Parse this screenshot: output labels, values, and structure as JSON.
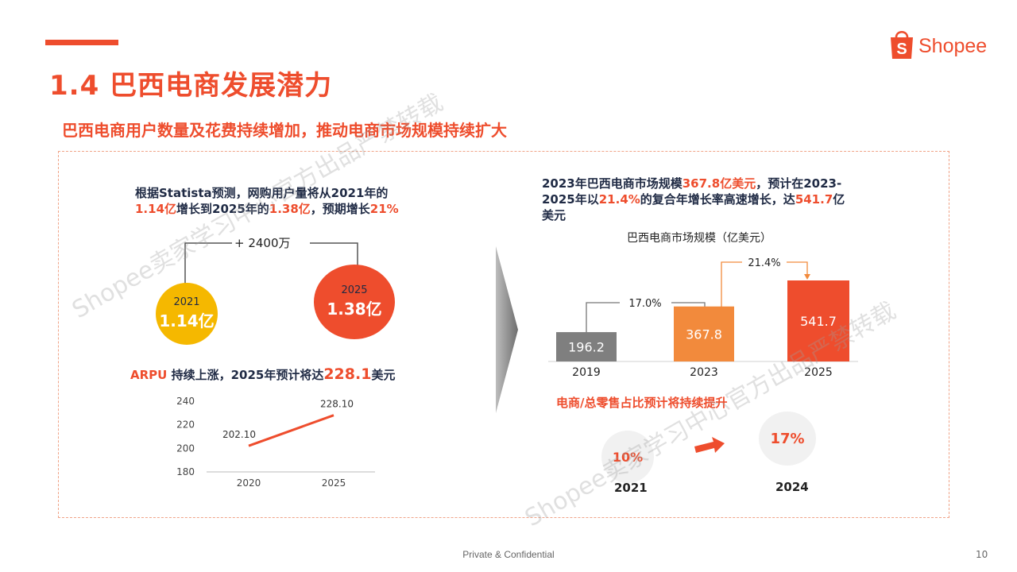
{
  "header": {
    "title": "1.4 巴西电商发展潜力",
    "subtitle": "巴西电商用户数量及花费持续增加，推动电商市场规模持续扩大",
    "logo_text": "Shopee"
  },
  "left": {
    "statement_line1": "根据Statista预测，网购用户量将从2021年的",
    "statement_line2_a": "1.14亿",
    "statement_line2_b": "增长到2025年的",
    "statement_line2_c": "1.38亿",
    "statement_line2_d": "，预期增长",
    "statement_line2_e": "21%",
    "delta_label": "+ 2400万",
    "circle_2021_year": "2021",
    "circle_2021_value": "1.14亿",
    "circle_2025_year": "2025",
    "circle_2025_value": "1.38亿",
    "arpu_a": "ARPU",
    "arpu_b": " 持续上涨，2025年预计将达",
    "arpu_c": "228.1",
    "arpu_d": "美元"
  },
  "right": {
    "statement_line1_a": "2023年巴西电商市场规模",
    "statement_line1_b": "367.8亿美元",
    "statement_line1_c": "，预计在2023-",
    "statement_line2_a": "2025年以",
    "statement_line2_b": "21.4%",
    "statement_line2_c": "的复合年增长率高速增长，达",
    "statement_line2_d": "541.7",
    "statement_line2_e": "亿",
    "statement_line3": "美元",
    "growth_1": "17.0%",
    "growth_2": "21.4%",
    "share_title": "电商/总零售占比预计将持续提升",
    "share_2021_value": "10%",
    "share_2021_year": "2021",
    "share_2024_value": "17%",
    "share_2024_year": "2024"
  },
  "colors": {
    "brand": "#ee4d2d",
    "bar_2019": "#7f7f7f",
    "bar_2023": "#f28a3c",
    "bar_2025": "#ee4d2d",
    "circle_2021": "#f5b800",
    "circle_2025": "#ee4d2d"
  },
  "chart_data": [
    {
      "type": "bar",
      "title": "巴西电商市场规模（亿美元）",
      "categories": [
        "2019",
        "2023",
        "2025"
      ],
      "values": [
        196.2,
        367.8,
        541.7
      ],
      "value_labels": [
        "196.2",
        "367.8",
        "541.7"
      ],
      "annotations": [
        "17.0%",
        "21.4%"
      ]
    },
    {
      "type": "line",
      "title": "",
      "categories": [
        "2020",
        "2025"
      ],
      "values": [
        202.1,
        228.1
      ],
      "value_labels": [
        "202.10",
        "228.10"
      ],
      "ylim": [
        180,
        240
      ],
      "y_ticks": [
        "240",
        "220",
        "200",
        "180"
      ]
    }
  ],
  "watermarks": [
    "Shopee卖家学习中心官方出品严禁转载",
    "Shopee卖家学习中心官方出品严禁转载"
  ],
  "footer": {
    "text": "Private & Confidential",
    "page": "10"
  }
}
